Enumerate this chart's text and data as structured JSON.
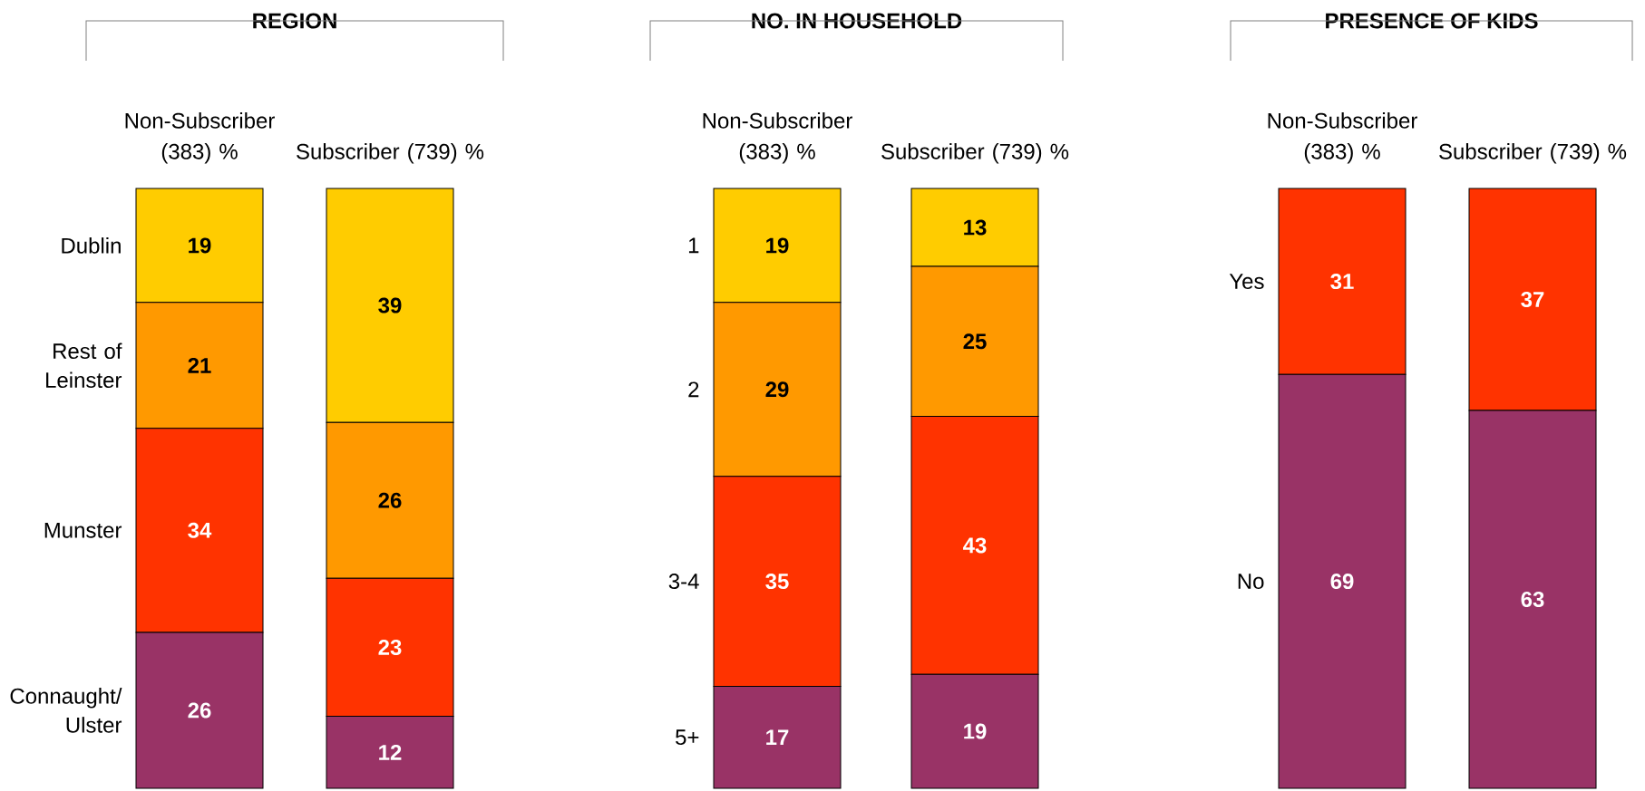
{
  "chart_data": [
    {
      "type": "bar",
      "stacked": true,
      "data_labels": true,
      "title": "REGION",
      "categories": [
        "Non-Subscriber (383) %",
        "Subscriber (739) %"
      ],
      "series": [
        {
          "name": "Connaught/ Ulster",
          "color": "#993366",
          "values": [
            26,
            12
          ]
        },
        {
          "name": "Munster",
          "color": "#ff3300",
          "values": [
            34,
            23
          ]
        },
        {
          "name": "Rest of Leinster",
          "color": "#ff9900",
          "values": [
            21,
            26
          ]
        },
        {
          "name": "Dublin",
          "color": "#ffcc00",
          "values": [
            19,
            39
          ]
        }
      ]
    },
    {
      "type": "bar",
      "stacked": true,
      "data_labels": true,
      "title": "NO. IN HOUSEHOLD",
      "categories": [
        "Non-Subscriber (383) %",
        "Subscriber (739) %"
      ],
      "series": [
        {
          "name": "5+",
          "color": "#993366",
          "values": [
            17,
            19
          ]
        },
        {
          "name": "3-4",
          "color": "#ff3300",
          "values": [
            35,
            43
          ]
        },
        {
          "name": "2",
          "color": "#ff9900",
          "values": [
            29,
            25
          ]
        },
        {
          "name": "1",
          "color": "#ffcc00",
          "values": [
            19,
            13
          ]
        }
      ]
    },
    {
      "type": "bar",
      "stacked": true,
      "data_labels": true,
      "title": "PRESENCE OF KIDS",
      "categories": [
        "Non-Subscriber (383) %",
        "Subscriber (739) %"
      ],
      "series": [
        {
          "name": "No",
          "color": "#993366",
          "values": [
            69,
            63
          ]
        },
        {
          "name": "Yes",
          "color": "#ff3300",
          "values": [
            31,
            37
          ]
        }
      ]
    }
  ]
}
